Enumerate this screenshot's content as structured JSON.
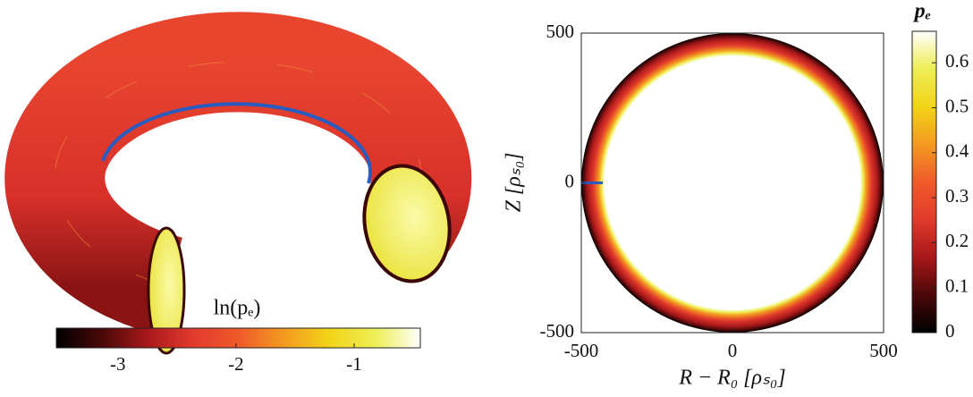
{
  "chart_data": [
    {
      "type": "surface",
      "colorbar_label": "ln(pₑ)",
      "clim": [
        -3.52,
        -0.44
      ],
      "cticks": [
        -3,
        -2,
        -1
      ],
      "colormap": [
        "#000000",
        "#4a0808",
        "#a8181a",
        "#e23a2c",
        "#ef5a2a",
        "#f39a20",
        "#f2d418",
        "#eeee55",
        "#ffffff"
      ]
    },
    {
      "type": "heatmap",
      "xlabel": "R − R₀ [ρₛ₀]",
      "ylabel": "Z [ρₛ₀]",
      "xlim": [
        -500,
        500
      ],
      "ylim": [
        -500,
        500
      ],
      "xticks": [
        -500,
        0,
        500
      ],
      "yticks": [
        -500,
        0,
        500
      ],
      "colorbar_label": "pₑ",
      "clim": [
        0,
        0.67
      ],
      "cticks": [
        0,
        0.1,
        0.2,
        0.3,
        0.4,
        0.5,
        0.6
      ],
      "colormap": [
        "#000000",
        "#4a0808",
        "#a8181a",
        "#e23a2c",
        "#ef5a2a",
        "#f39a20",
        "#f2d418",
        "#eeee55",
        "#ffffff"
      ]
    }
  ]
}
